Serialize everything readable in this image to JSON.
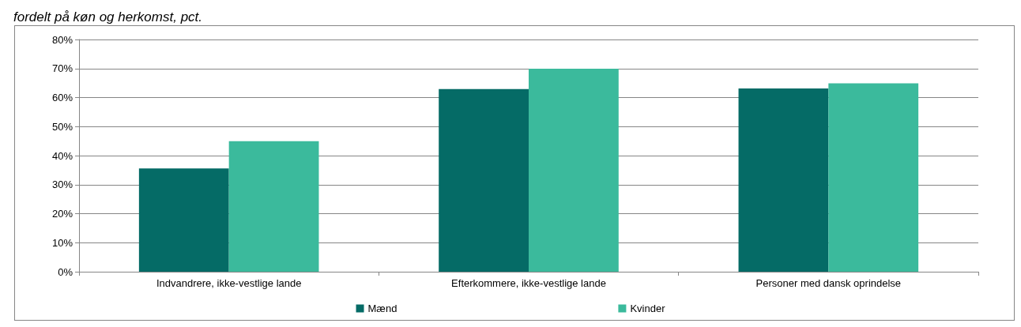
{
  "chart_data": {
    "type": "bar",
    "title": "fordelt på køn og herkomst, pct.",
    "categories": [
      "Indvandrere, ikke-vestlige lande",
      "Efterkommere, ikke-vestlige lande",
      "Personer med dansk oprindelse"
    ],
    "series": [
      {
        "name": "Mænd",
        "color": "#056b66",
        "values": [
          35.6,
          62.9,
          63.1
        ]
      },
      {
        "name": "Kvinder",
        "color": "#3bba9c",
        "values": [
          45,
          69.9,
          64.9
        ]
      }
    ],
    "ylim": [
      0,
      80
    ],
    "yticks": [
      {
        "value": 0,
        "label": "0%"
      },
      {
        "value": 10,
        "label": "10%"
      },
      {
        "value": 20,
        "label": "20%"
      },
      {
        "value": 30,
        "label": "30%"
      },
      {
        "value": 40,
        "label": "40%"
      },
      {
        "value": 50,
        "label": "50%"
      },
      {
        "value": 60,
        "label": "60%"
      },
      {
        "value": 70,
        "label": "70%"
      },
      {
        "value": 80,
        "label": "80%"
      }
    ],
    "grid": "y",
    "legend": "bottom"
  }
}
